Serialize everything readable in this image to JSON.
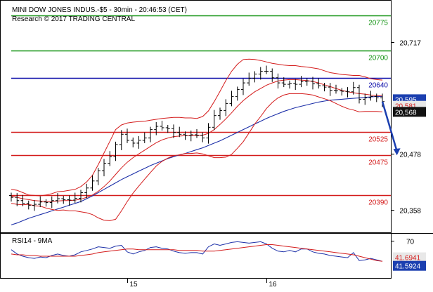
{
  "header": {
    "title": "MINI DOW JONES INDUS.-$5 - 30min - 20:46:53 (CET)",
    "credit": "Research © 2017 TRADING CENTRAL"
  },
  "chart_data": [
    {
      "type": "line",
      "panel": "price",
      "ylim": [
        20310,
        20800
      ],
      "x_ticks": [
        {
          "i": 20,
          "label": "15"
        },
        {
          "i": 44,
          "label": "16"
        }
      ],
      "y_ticks": [
        {
          "value": 20717,
          "label": "20,717"
        },
        {
          "value": 20478,
          "label": "20,478"
        },
        {
          "value": 20358,
          "label": "20,358"
        }
      ],
      "levels": [
        {
          "value": 20775,
          "label": "20775",
          "color": "#149414"
        },
        {
          "value": 20700,
          "label": "20700",
          "color": "#149414"
        },
        {
          "value": 20640,
          "label": "20640",
          "color": "#0a0aa8"
        },
        {
          "value": 20525,
          "label": "20525",
          "color": "#d41c1c"
        },
        {
          "value": 20475,
          "label": "20475",
          "color": "#d41c1c"
        },
        {
          "value": 20390,
          "label": "20390",
          "color": "#d41c1c"
        }
      ],
      "price_boxes": [
        {
          "value": 20595,
          "label": "20,595.",
          "bg": "#1b3fb0",
          "fg": "#ffffff"
        },
        {
          "value": 20581,
          "label": "20,581.",
          "bg": "#e8e8e8",
          "fg": "#d41c1c"
        },
        {
          "value": 20568,
          "label": "20,568",
          "bg": "#111111",
          "fg": "#ffffff"
        }
      ],
      "arrow": {
        "from": [
          64,
          20590
        ],
        "to": [
          66.5,
          20475
        ],
        "color": "#1b3fb0"
      },
      "close": [
        20385,
        20378,
        20372,
        20368,
        20370,
        20375,
        20374,
        20378,
        20382,
        20380,
        20379,
        20383,
        20395,
        20405,
        20420,
        20442,
        20458,
        20472,
        20498,
        20520,
        20507,
        20501,
        20507,
        20512,
        20530,
        20537,
        20534,
        20532,
        20524,
        20520,
        20517,
        20519,
        20518,
        20512,
        20535,
        20560,
        20571,
        20586,
        20601,
        20616,
        20630,
        20640,
        20649,
        20655,
        20655,
        20641,
        20630,
        20627,
        20629,
        20627,
        20633,
        20634,
        20628,
        20624,
        20621,
        20614,
        20613,
        20612,
        20611,
        20620,
        20595,
        20598,
        20601,
        20598,
        20590
      ],
      "series": [
        {
          "name": "ma_blue",
          "color": "#1c2fa8",
          "values": [
            20326,
            20330,
            20335,
            20340,
            20344,
            20348,
            20352,
            20356,
            20360,
            20364,
            20368,
            20372,
            20376,
            20382,
            20388,
            20395,
            20402,
            20409,
            20416,
            20423,
            20429,
            20435,
            20441,
            20447,
            20453,
            20458,
            20463,
            20468,
            20472,
            20476,
            20479,
            20483,
            20487,
            20491,
            20496,
            20501,
            20506,
            20512,
            20518,
            20524,
            20530,
            20536,
            20542,
            20548,
            20554,
            20559,
            20564,
            20569,
            20573,
            20577,
            20580,
            20583,
            20586,
            20589,
            20591,
            20593,
            20594,
            20595,
            20596,
            20597,
            20598,
            20599,
            20600,
            20601,
            20601
          ]
        },
        {
          "name": "bb_upper",
          "color": "#d41c1c",
          "values": [
            20402,
            20400,
            20395,
            20390,
            20389,
            20388,
            20390,
            20393,
            20397,
            20398,
            20400,
            20402,
            20408,
            20418,
            20432,
            20455,
            20480,
            20505,
            20530,
            20540,
            20544,
            20546,
            20547,
            20548,
            20550,
            20552,
            20554,
            20555,
            20556,
            20556,
            20555,
            20555,
            20554,
            20558,
            20570,
            20590,
            20612,
            20635,
            20655,
            20670,
            20680,
            20681,
            20680,
            20678,
            20675,
            20672,
            20670,
            20668,
            20667,
            20667,
            20665,
            20664,
            20662,
            20660,
            20656,
            20652,
            20650,
            20648,
            20647,
            20646,
            20646,
            20643,
            20639,
            20637,
            20636
          ]
        },
        {
          "name": "bb_mid",
          "color": "#d41c1c",
          "values": [
            20387,
            20385,
            20382,
            20380,
            20378,
            20377,
            20376,
            20376,
            20377,
            20378,
            20378,
            20379,
            20381,
            20385,
            20390,
            20398,
            20408,
            20420,
            20434,
            20448,
            20460,
            20470,
            20478,
            20486,
            20494,
            20502,
            20508,
            20512,
            20515,
            20516,
            20517,
            20517,
            20517,
            20518,
            20522,
            20530,
            20541,
            20553,
            20566,
            20580,
            20592,
            20602,
            20611,
            20618,
            20625,
            20630,
            20634,
            20636,
            20637,
            20637,
            20636,
            20635,
            20633,
            20630,
            20626,
            20622,
            20618,
            20614,
            20611,
            20609,
            20607,
            20606,
            20604,
            20603,
            20602
          ]
        },
        {
          "name": "bb_lower",
          "color": "#d41c1c",
          "values": [
            20372,
            20370,
            20369,
            20370,
            20367,
            20366,
            20362,
            20359,
            20357,
            20358,
            20356,
            20356,
            20354,
            20352,
            20348,
            20341,
            20336,
            20335,
            20338,
            20356,
            20376,
            20394,
            20409,
            20424,
            20438,
            20452,
            20462,
            20469,
            20474,
            20476,
            20479,
            20479,
            20480,
            20478,
            20474,
            20470,
            20470,
            20471,
            20477,
            20490,
            20504,
            20523,
            20542,
            20558,
            20575,
            20588,
            20598,
            20604,
            20607,
            20607,
            20607,
            20606,
            20604,
            20600,
            20596,
            20592,
            20586,
            20580,
            20575,
            20572,
            20568,
            20569,
            20569,
            20569,
            20568
          ]
        }
      ]
    },
    {
      "type": "line",
      "panel": "rsi",
      "label": "RSI14 - 9MA",
      "ylim": [
        20,
        80
      ],
      "y_ticks": [
        {
          "value": 70,
          "label": "70"
        }
      ],
      "value_boxes": [
        {
          "value": 41.6941,
          "label": "41.6941",
          "bg": "#e8e8e8",
          "fg": "#d41c1c"
        },
        {
          "value": 41.5924,
          "label": "41.5924",
          "bg": "#1b3fb0",
          "fg": "#ffffff"
        }
      ],
      "series": [
        {
          "name": "RSI14",
          "color": "#1c2fa8",
          "values": [
            58,
            52,
            49,
            47,
            46,
            48,
            47,
            50,
            52,
            50,
            49,
            51,
            55,
            57,
            59,
            62,
            61,
            60,
            63,
            64,
            55,
            52,
            55,
            57,
            61,
            62,
            60,
            59,
            56,
            54,
            53,
            54,
            54,
            52,
            62,
            66,
            64,
            66,
            68,
            69,
            68,
            67,
            68,
            69,
            66,
            60,
            56,
            55,
            57,
            55,
            59,
            59,
            55,
            53,
            52,
            50,
            49,
            48,
            47,
            54,
            43,
            44,
            46,
            44,
            42
          ]
        },
        {
          "name": "9MA",
          "color": "#d41c1c",
          "values": [
            52,
            51,
            51,
            50,
            50,
            49,
            49,
            49,
            49,
            49,
            49,
            49,
            50,
            51,
            52,
            54,
            55,
            56,
            57,
            58,
            59,
            59,
            58,
            58,
            58,
            58,
            58,
            58,
            58,
            57,
            57,
            57,
            57,
            56,
            56,
            56,
            57,
            58,
            59,
            60,
            61,
            62,
            63,
            64,
            65,
            65,
            64,
            63,
            62,
            61,
            60,
            59,
            58,
            57,
            56,
            55,
            54,
            53,
            52,
            51,
            49,
            47,
            45,
            43,
            42
          ]
        }
      ]
    }
  ]
}
